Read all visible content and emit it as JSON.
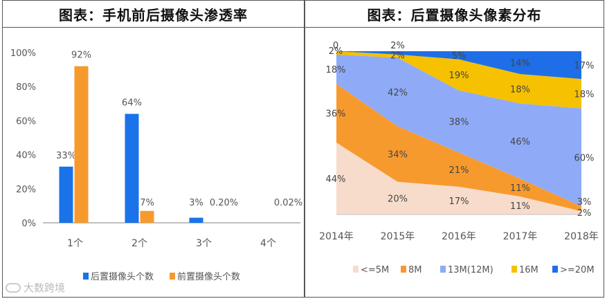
{
  "watermark": "大数跨境",
  "colors": {
    "rear": "#1a73e8",
    "front": "#f79a2e",
    "axis": "#bfbfbf",
    "text": "#555555"
  },
  "chart_data": [
    {
      "type": "bar",
      "title": "图表：手机前后摄像头渗透率",
      "categories": [
        "1个",
        "2个",
        "3个",
        "4个"
      ],
      "ylim": [
        0,
        100
      ],
      "yticks": [
        "0%",
        "20%",
        "40%",
        "60%",
        "80%",
        "100%"
      ],
      "series": [
        {
          "name": "后置摄像头个数",
          "color": "#1a73e8",
          "values": [
            33,
            64,
            3,
            null
          ],
          "labels": [
            "33%",
            "64%",
            "3%",
            ""
          ]
        },
        {
          "name": "前置摄像头个数",
          "color": "#f79a2e",
          "values": [
            92,
            7,
            0.2,
            0.02
          ],
          "labels": [
            "92%",
            "7%",
            "0.20%",
            "0.02%"
          ]
        }
      ],
      "legend": "bottom"
    },
    {
      "type": "area",
      "stacked": true,
      "title": "图表：后置摄像头像素分布",
      "categories": [
        "2014年",
        "2015年",
        "2016年",
        "2017年",
        "2018年"
      ],
      "series": [
        {
          "name": "<=5M",
          "color": "#f8dccb",
          "values": [
            44,
            20,
            17,
            11,
            2
          ],
          "labels": [
            "44%",
            "20%",
            "17%",
            "11%",
            "2%"
          ]
        },
        {
          "name": "8M",
          "color": "#f79a2e",
          "values": [
            36,
            34,
            21,
            11,
            3
          ],
          "labels": [
            "36%",
            "34%",
            "21%",
            "11%",
            "3%"
          ]
        },
        {
          "name": "13M(12M)",
          "color": "#8fabf7",
          "values": [
            18,
            42,
            38,
            46,
            60
          ],
          "labels": [
            "18%",
            "42%",
            "38%",
            "46%",
            "60%"
          ]
        },
        {
          "name": "16M",
          "color": "#f5c100",
          "values": [
            2,
            2,
            19,
            18,
            18
          ],
          "labels": [
            "2%",
            "2%",
            "19%",
            "18%",
            "18%"
          ]
        },
        {
          "name": ">=20M",
          "color": "#1e6ee8",
          "values": [
            0,
            2,
            5,
            14,
            17
          ],
          "labels": [
            "0",
            "2%",
            "5%",
            "14%",
            "17%"
          ]
        }
      ],
      "legend": "bottom"
    }
  ]
}
